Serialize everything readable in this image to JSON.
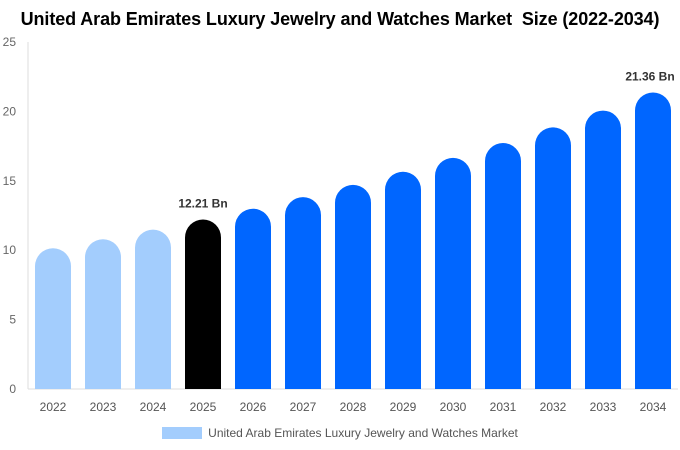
{
  "chart_data": {
    "type": "bar",
    "title": "United Arab Emirates Luxury Jewelry and Watches Market  Size (2022-2034)",
    "categories": [
      "2022",
      "2023",
      "2024",
      "2025",
      "2026",
      "2027",
      "2028",
      "2029",
      "2030",
      "2031",
      "2032",
      "2033",
      "2034"
    ],
    "series": [
      {
        "name": "United Arab Emirates Luxury Jewelry and Watches Market",
        "values": [
          10.14,
          10.79,
          11.48,
          12.21,
          12.99,
          13.82,
          14.71,
          15.65,
          16.65,
          17.72,
          18.85,
          20.06,
          21.36
        ]
      }
    ],
    "data_labels": {
      "2025": "12.21 Bn",
      "2034": "21.36 Bn"
    },
    "ylim": [
      0,
      25
    ],
    "yticks": [
      0,
      5,
      10,
      15,
      20,
      25
    ],
    "grid": false,
    "legend_position": "bottom",
    "colors": {
      "historical": "#a3cdfd",
      "base_year": "#000000",
      "forecast": "#0066ff"
    }
  }
}
